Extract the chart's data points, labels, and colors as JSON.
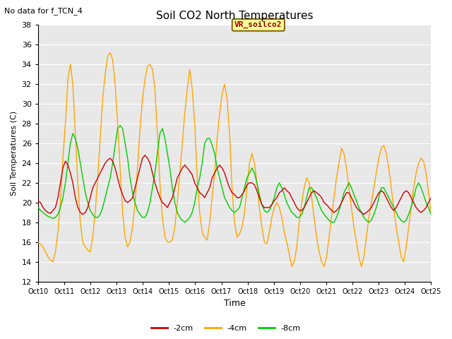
{
  "title": "Soil CO2 North Temperatures",
  "subtitle": "No data for f_TCN_4",
  "xlabel": "Time",
  "ylabel": "Soil Temperatures (C)",
  "ylim": [
    12,
    38
  ],
  "yticks": [
    12,
    14,
    16,
    18,
    20,
    22,
    24,
    26,
    28,
    30,
    32,
    34,
    36,
    38
  ],
  "bg_color": "#e8e8e8",
  "legend_label": "VR_soilco2",
  "legend_box_facecolor": "#ffff99",
  "legend_box_edgecolor": "#8B6914",
  "col_neg2cm": "#cc0000",
  "col_neg4cm": "#ffa500",
  "col_neg8cm": "#00cc00",
  "x_tick_labels": [
    "Oct 10",
    "Oct 11",
    "Oct 12",
    "Oct 13",
    "Oct 14",
    "Oct 15",
    "Oct 16",
    "Oct 17",
    "Oct 18",
    "Oct 19",
    "Oct 20",
    "Oct 21",
    "Oct 22",
    "Oct 23",
    "Oct 24",
    "Oct 25"
  ],
  "x_tick_pos": [
    0,
    1,
    2,
    3,
    4,
    5,
    6,
    7,
    8,
    9,
    10,
    11,
    12,
    13,
    14,
    15
  ],
  "neg2cm": [
    20.2,
    20.0,
    19.5,
    19.2,
    19.0,
    18.9,
    19.2,
    19.5,
    20.5,
    22.0,
    23.5,
    24.2,
    23.8,
    23.0,
    22.0,
    20.5,
    19.5,
    19.0,
    18.8,
    19.0,
    19.5,
    20.5,
    21.5,
    22.0,
    22.5,
    23.0,
    23.5,
    24.0,
    24.3,
    24.5,
    24.2,
    23.5,
    22.5,
    21.5,
    20.8,
    20.2,
    20.0,
    20.2,
    20.5,
    21.5,
    22.5,
    23.5,
    24.5,
    24.8,
    24.5,
    24.0,
    23.0,
    22.0,
    21.2,
    20.5,
    20.0,
    19.8,
    19.5,
    20.0,
    20.5,
    21.5,
    22.5,
    23.0,
    23.5,
    23.8,
    23.5,
    23.2,
    22.8,
    22.0,
    21.5,
    21.0,
    20.8,
    20.5,
    21.0,
    21.5,
    22.5,
    23.0,
    23.5,
    23.8,
    23.5,
    23.0,
    22.2,
    21.5,
    21.0,
    20.8,
    20.5,
    20.5,
    20.8,
    21.2,
    21.8,
    22.0,
    22.0,
    21.8,
    21.2,
    20.5,
    19.8,
    19.5,
    19.5,
    19.5,
    19.8,
    20.2,
    20.5,
    21.0,
    21.2,
    21.5,
    21.2,
    21.0,
    20.5,
    20.0,
    19.5,
    19.2,
    19.2,
    19.5,
    20.0,
    20.5,
    21.0,
    21.2,
    21.0,
    20.8,
    20.5,
    20.0,
    19.8,
    19.5,
    19.2,
    19.0,
    19.2,
    19.5,
    20.0,
    20.5,
    21.0,
    21.0,
    20.5,
    20.0,
    19.5,
    19.2,
    19.0,
    18.8,
    19.0,
    19.2,
    19.5,
    20.0,
    20.5,
    21.0,
    21.2,
    21.0,
    20.5,
    20.0,
    19.5,
    19.2,
    19.5,
    20.0,
    20.5,
    21.0,
    21.2,
    21.0,
    20.5,
    20.0,
    19.5,
    19.2,
    19.0,
    19.2,
    19.5,
    20.0,
    20.5
  ],
  "neg4cm": [
    16.0,
    15.8,
    15.5,
    15.0,
    14.5,
    14.2,
    14.0,
    15.0,
    17.0,
    20.0,
    24.5,
    28.0,
    32.5,
    34.0,
    32.0,
    27.0,
    22.0,
    18.0,
    16.0,
    15.5,
    15.2,
    15.0,
    16.5,
    19.0,
    22.5,
    26.5,
    30.5,
    33.0,
    34.8,
    35.2,
    34.5,
    32.0,
    28.0,
    23.5,
    19.0,
    16.5,
    15.5,
    16.0,
    17.5,
    20.0,
    23.5,
    27.5,
    30.5,
    32.5,
    33.8,
    34.0,
    33.5,
    31.5,
    27.0,
    22.0,
    18.5,
    16.5,
    16.0,
    16.0,
    16.2,
    17.5,
    20.0,
    23.0,
    26.0,
    29.0,
    31.5,
    33.5,
    31.5,
    28.0,
    22.5,
    19.0,
    17.0,
    16.5,
    16.2,
    18.0,
    20.5,
    23.0,
    26.5,
    29.0,
    31.0,
    32.0,
    30.5,
    27.0,
    21.5,
    18.0,
    16.5,
    16.8,
    17.5,
    19.0,
    21.5,
    24.0,
    25.0,
    24.0,
    22.0,
    19.5,
    17.5,
    16.0,
    15.8,
    17.0,
    18.5,
    19.5,
    20.0,
    19.5,
    18.5,
    17.0,
    16.0,
    14.8,
    13.5,
    14.0,
    15.5,
    18.0,
    20.0,
    21.5,
    22.5,
    22.0,
    20.5,
    18.5,
    16.5,
    15.0,
    14.0,
    13.5,
    14.5,
    16.5,
    18.5,
    20.5,
    22.5,
    24.0,
    25.5,
    25.0,
    23.5,
    21.5,
    19.5,
    17.5,
    16.0,
    14.5,
    13.5,
    14.5,
    16.5,
    18.5,
    20.0,
    21.5,
    23.0,
    24.5,
    25.5,
    25.8,
    25.0,
    23.5,
    21.5,
    19.5,
    17.5,
    16.0,
    14.5,
    14.0,
    15.5,
    17.5,
    19.5,
    21.5,
    23.0,
    24.0,
    24.5,
    24.2,
    23.0,
    21.0,
    19.0
  ],
  "neg8cm": [
    19.5,
    19.2,
    19.0,
    18.8,
    18.6,
    18.5,
    18.4,
    18.5,
    18.8,
    19.5,
    20.5,
    22.0,
    24.0,
    26.0,
    27.0,
    26.5,
    25.5,
    24.0,
    22.5,
    21.0,
    20.0,
    19.2,
    18.8,
    18.5,
    18.5,
    18.8,
    19.5,
    20.5,
    21.5,
    22.5,
    24.0,
    25.8,
    27.5,
    27.8,
    27.5,
    26.0,
    24.5,
    22.5,
    21.0,
    20.0,
    19.2,
    18.8,
    18.5,
    18.5,
    19.0,
    20.0,
    21.5,
    23.0,
    25.0,
    27.0,
    27.5,
    26.5,
    25.0,
    23.5,
    21.5,
    20.0,
    19.0,
    18.5,
    18.2,
    18.0,
    18.2,
    18.5,
    19.0,
    20.0,
    21.5,
    22.5,
    24.0,
    26.0,
    26.5,
    26.5,
    25.8,
    25.0,
    23.5,
    22.5,
    21.5,
    20.5,
    20.0,
    19.5,
    19.2,
    19.0,
    19.2,
    19.5,
    20.5,
    21.5,
    22.5,
    23.0,
    23.5,
    23.0,
    22.0,
    20.8,
    19.8,
    19.2,
    19.0,
    19.2,
    19.8,
    20.5,
    21.5,
    22.0,
    21.5,
    20.8,
    20.0,
    19.5,
    19.0,
    18.8,
    18.5,
    18.5,
    18.8,
    19.5,
    20.5,
    21.5,
    21.5,
    21.0,
    20.5,
    19.8,
    19.2,
    18.8,
    18.5,
    18.2,
    18.0,
    18.0,
    18.5,
    19.2,
    20.0,
    21.0,
    21.5,
    22.0,
    21.5,
    20.8,
    20.2,
    19.5,
    19.0,
    18.5,
    18.2,
    18.0,
    18.2,
    18.8,
    19.5,
    20.5,
    21.5,
    21.5,
    21.0,
    20.5,
    20.0,
    19.5,
    19.0,
    18.5,
    18.2,
    18.0,
    18.2,
    18.8,
    19.5,
    20.5,
    21.5,
    22.0,
    21.5,
    20.8,
    20.0,
    19.5,
    18.8
  ]
}
